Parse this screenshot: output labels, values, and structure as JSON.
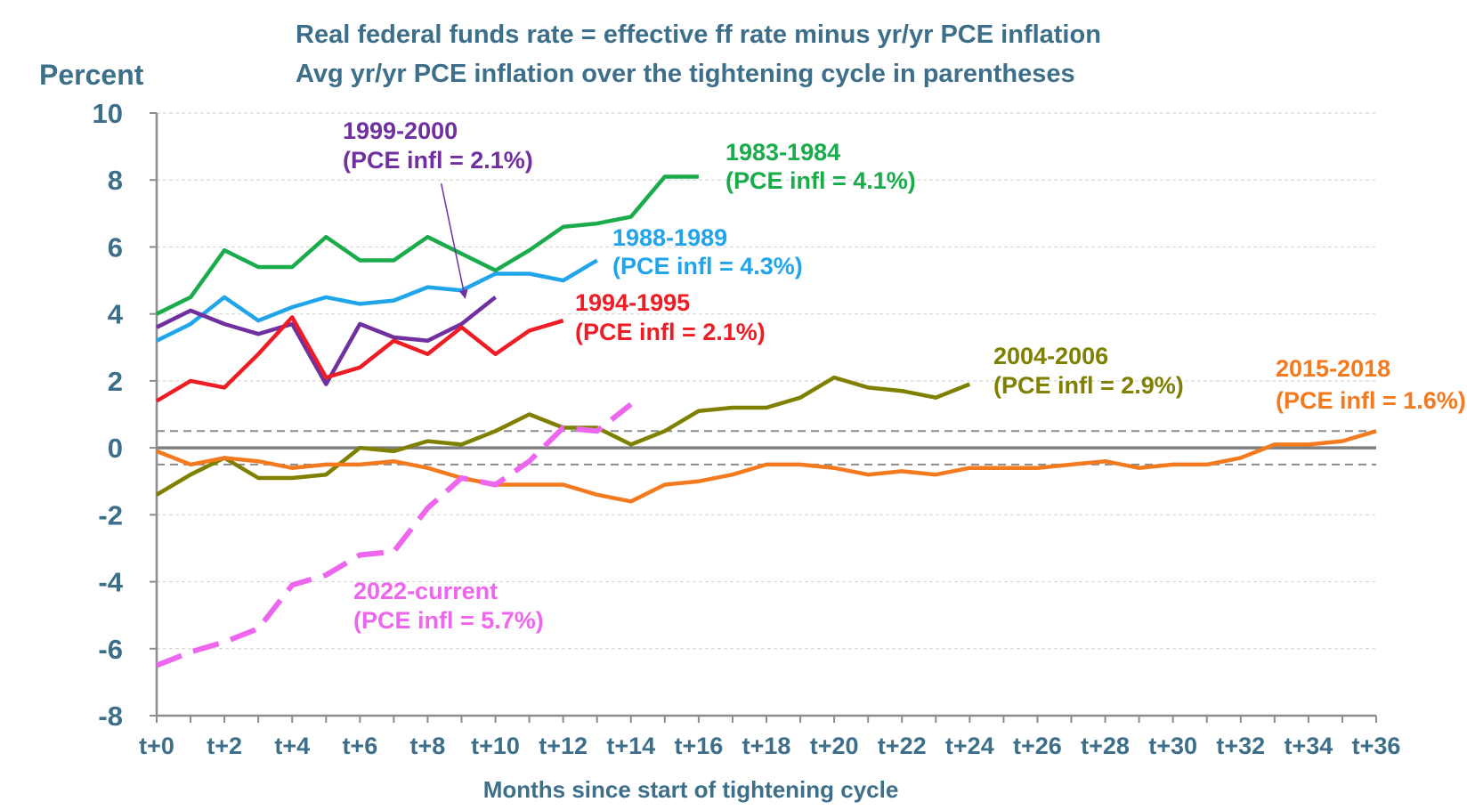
{
  "chart_data": {
    "type": "line",
    "title": [
      "Real federal funds rate = effective ff rate minus yr/yr PCE inflation",
      "Avg yr/yr PCE inflation over the tightening cycle in parentheses"
    ],
    "ylabel": "Percent",
    "xlabel": "Months since start of tightening cycle",
    "ylim": [
      -8,
      10
    ],
    "yticks": [
      "10",
      "8",
      "6",
      "4",
      "2",
      "0",
      "-2",
      "-4",
      "-6",
      "-8"
    ],
    "ytick_values": [
      10,
      8,
      6,
      4,
      2,
      0,
      -2,
      -4,
      -6,
      -8
    ],
    "xlim": [
      0,
      36
    ],
    "xticks": [
      "t+0",
      "t+2",
      "t+4",
      "t+6",
      "t+8",
      "t+10",
      "t+12",
      "t+14",
      "t+16",
      "t+18",
      "t+20",
      "t+22",
      "t+24",
      "t+26",
      "t+28",
      "t+30",
      "t+32",
      "t+34",
      "t+36"
    ],
    "xtick_values": [
      0,
      2,
      4,
      6,
      8,
      10,
      12,
      14,
      16,
      18,
      20,
      22,
      24,
      26,
      28,
      30,
      32,
      34,
      36
    ],
    "reference_lines": [
      {
        "y": 0,
        "style": "solid",
        "color": "#7f7f7f"
      },
      {
        "y": 0.5,
        "style": "dashed",
        "color": "#8c8c8c"
      },
      {
        "y": -0.5,
        "style": "dashed",
        "color": "#8c8c8c"
      }
    ],
    "series": [
      {
        "name": "1983-1984",
        "label_line1": "1983-1984",
        "label_line2": "(PCE infl = 4.1%)",
        "color": "#1aab4b",
        "dashed": false,
        "x": [
          0,
          1,
          2,
          3,
          4,
          5,
          6,
          7,
          8,
          9,
          10,
          11,
          12,
          13,
          14,
          15,
          16
        ],
        "values": [
          4.0,
          4.5,
          5.9,
          5.4,
          5.4,
          6.3,
          5.6,
          5.6,
          6.3,
          5.8,
          5.3,
          5.9,
          6.6,
          6.7,
          6.9,
          8.1,
          8.1
        ]
      },
      {
        "name": "1988-1989",
        "label_line1": "1988-1989",
        "label_line2": "(PCE infl = 4.3%)",
        "color": "#21a5ea",
        "dashed": false,
        "x": [
          0,
          1,
          2,
          3,
          4,
          5,
          6,
          7,
          8,
          9,
          10,
          11,
          12,
          13
        ],
        "values": [
          3.2,
          3.7,
          4.5,
          3.8,
          4.2,
          4.5,
          4.3,
          4.4,
          4.8,
          4.7,
          5.2,
          5.2,
          5.0,
          5.6
        ]
      },
      {
        "name": "1999-2000",
        "label_line1": "1999-2000",
        "label_line2": "(PCE infl = 2.1%)",
        "color": "#7030a0",
        "dashed": false,
        "x": [
          0,
          1,
          2,
          3,
          4,
          5,
          6,
          7,
          8,
          9,
          10
        ],
        "values": [
          3.6,
          4.1,
          3.7,
          3.4,
          3.7,
          1.9,
          3.7,
          3.3,
          3.2,
          3.7,
          4.5
        ]
      },
      {
        "name": "1994-1995",
        "label_line1": "1994-1995",
        "label_line2": "(PCE infl = 2.1%)",
        "color": "#ee1c25",
        "dashed": false,
        "x": [
          0,
          1,
          2,
          3,
          4,
          5,
          6,
          7,
          8,
          9,
          10,
          11,
          12
        ],
        "values": [
          1.4,
          2.0,
          1.8,
          2.8,
          3.9,
          2.1,
          2.4,
          3.2,
          2.8,
          3.6,
          2.8,
          3.5,
          3.8
        ]
      },
      {
        "name": "2004-2006",
        "label_line1": "2004-2006",
        "label_line2": "(PCE infl = 2.9%)",
        "color": "#7f7f00",
        "dashed": false,
        "x": [
          0,
          1,
          2,
          3,
          4,
          5,
          6,
          7,
          8,
          9,
          10,
          11,
          12,
          13,
          14,
          15,
          16,
          17,
          18,
          19,
          20,
          21,
          22,
          23,
          24
        ],
        "values": [
          -1.4,
          -0.8,
          -0.3,
          -0.9,
          -0.9,
          -0.8,
          0.0,
          -0.1,
          0.2,
          0.1,
          0.5,
          1.0,
          0.6,
          0.6,
          0.1,
          0.5,
          1.1,
          1.2,
          1.2,
          1.5,
          2.1,
          1.8,
          1.7,
          1.5,
          1.9
        ]
      },
      {
        "name": "2015-2018",
        "label_line1": "2015-2018",
        "label_line2": "(PCE infl = 1.6%)",
        "color": "#f47a1f",
        "dashed": false,
        "x": [
          0,
          1,
          2,
          3,
          4,
          5,
          6,
          7,
          8,
          9,
          10,
          11,
          12,
          13,
          14,
          15,
          16,
          17,
          18,
          19,
          20,
          21,
          22,
          23,
          24,
          25,
          26,
          27,
          28,
          29,
          30,
          31,
          32,
          33,
          34,
          35,
          36
        ],
        "values": [
          -0.1,
          -0.5,
          -0.3,
          -0.4,
          -0.6,
          -0.5,
          -0.5,
          -0.4,
          -0.6,
          -0.9,
          -1.1,
          -1.1,
          -1.1,
          -1.4,
          -1.6,
          -1.1,
          -1.0,
          -0.8,
          -0.5,
          -0.5,
          -0.6,
          -0.8,
          -0.7,
          -0.8,
          -0.6,
          -0.6,
          -0.6,
          -0.5,
          -0.4,
          -0.6,
          -0.5,
          -0.5,
          -0.3,
          0.1,
          0.1,
          0.2,
          0.5
        ]
      },
      {
        "name": "2022-current",
        "label_line1": "2022-current",
        "label_line2": "(PCE infl = 5.7%)",
        "color": "#ee66ee",
        "dashed": true,
        "x": [
          0,
          1,
          2,
          3,
          4,
          5,
          6,
          7,
          8,
          9,
          10,
          11,
          12,
          13,
          14
        ],
        "values": [
          -6.5,
          -6.1,
          -5.8,
          -5.4,
          -4.1,
          -3.8,
          -3.2,
          -3.1,
          -1.8,
          -0.9,
          -1.1,
          -0.4,
          0.6,
          0.5,
          1.3
        ]
      }
    ],
    "annotations": [
      {
        "series": "1999-2000",
        "arrow_from": [
          8.4,
          7.9
        ],
        "arrow_to": [
          9.1,
          4.5
        ]
      }
    ]
  }
}
